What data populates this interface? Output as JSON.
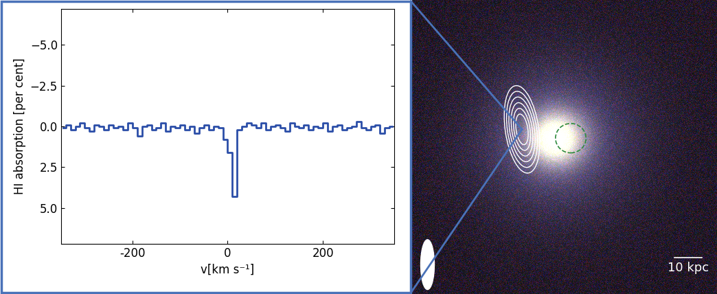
{
  "chart_data": {
    "type": "line",
    "line_style": "steps",
    "color": "#2b4ea8",
    "x_label": "v[km s⁻¹]",
    "y_label": "HI absorption [per cent]",
    "x": [
      -345,
      -335,
      -325,
      -315,
      -305,
      -295,
      -285,
      -275,
      -265,
      -255,
      -245,
      -235,
      -225,
      -215,
      -205,
      -195,
      -185,
      -175,
      -165,
      -155,
      -145,
      -135,
      -125,
      -115,
      -105,
      -95,
      -85,
      -75,
      -65,
      -55,
      -45,
      -35,
      -25,
      -15,
      -5,
      5,
      15,
      25,
      35,
      45,
      55,
      65,
      75,
      85,
      95,
      105,
      115,
      125,
      135,
      145,
      155,
      165,
      175,
      185,
      195,
      205,
      215,
      225,
      235,
      245,
      255,
      265,
      275,
      285,
      295,
      305,
      315,
      325,
      335,
      345
    ],
    "values": [
      0.1,
      -0.1,
      0.2,
      0.0,
      -0.2,
      0.1,
      0.3,
      -0.1,
      0.0,
      0.2,
      -0.1,
      0.1,
      0.0,
      0.2,
      -0.2,
      0.1,
      0.6,
      0.0,
      -0.1,
      0.2,
      0.1,
      -0.2,
      0.3,
      0.0,
      0.1,
      -0.1,
      0.2,
      0.0,
      0.4,
      0.1,
      -0.1,
      0.2,
      0.0,
      0.1,
      0.8,
      1.6,
      4.3,
      0.2,
      0.0,
      -0.2,
      -0.1,
      0.1,
      -0.2,
      0.2,
      0.0,
      -0.1,
      0.1,
      0.3,
      -0.2,
      0.0,
      0.1,
      -0.1,
      0.2,
      0.0,
      0.1,
      -0.2,
      0.3,
      0.0,
      -0.1,
      0.2,
      0.1,
      0.0,
      -0.3,
      0.1,
      0.2,
      0.0,
      -0.1,
      0.4,
      0.1,
      0.0
    ],
    "xlim": [
      -350,
      350
    ],
    "xticks": [
      -200,
      0,
      200
    ],
    "ylim": [
      7.2,
      -7.2
    ],
    "yticks": [
      {
        "value": -5.0,
        "label": "−5.0"
      },
      {
        "value": -2.5,
        "label": "−2.5"
      },
      {
        "value": 0.0,
        "label": "0.0"
      },
      {
        "value": 2.5,
        "label": "2.5"
      },
      {
        "value": 5.0,
        "label": "5.0"
      }
    ],
    "annotation": "10 kpc"
  }
}
